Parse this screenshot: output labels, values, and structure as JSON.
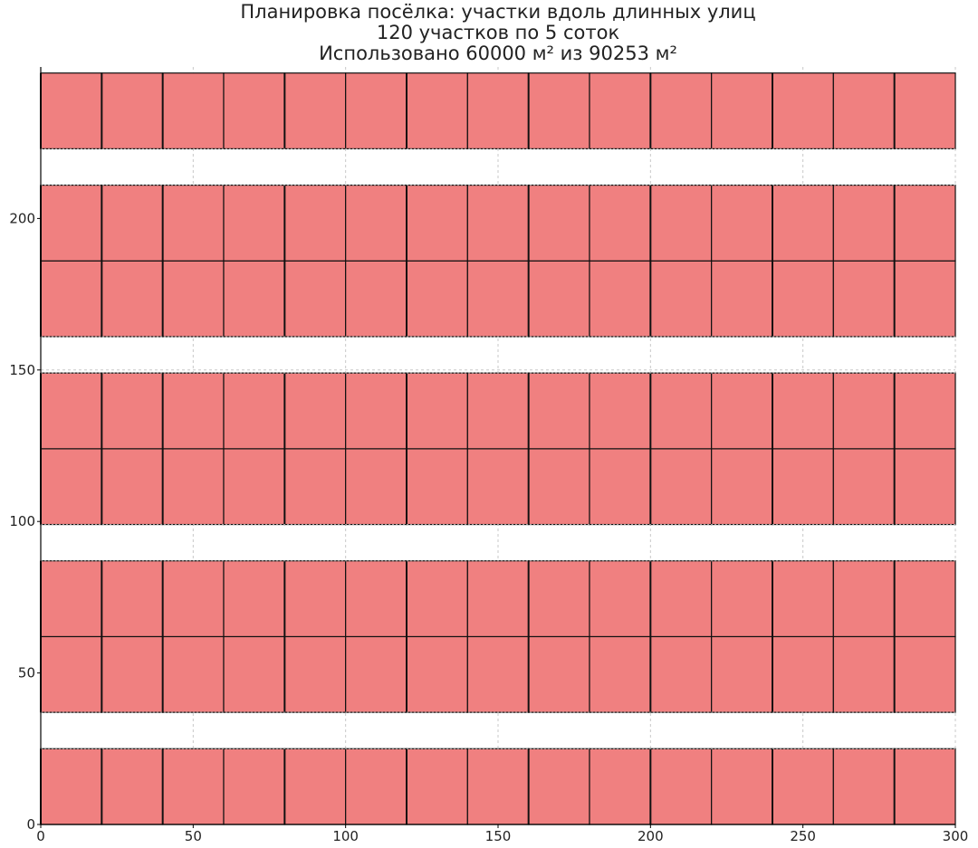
{
  "chart_data": {
    "type": "heatmap",
    "title": "Планировка посёлка: участки вдоль длинных улиц",
    "subtitle_lines": [
      "120 участков по 5 соток",
      "Использовано 60000 м² из 90253 м²"
    ],
    "xlabel": "",
    "ylabel": "",
    "xlim": [
      0,
      300
    ],
    "ylim": [
      0,
      250
    ],
    "x_ticks": [
      0,
      50,
      100,
      150,
      200,
      250,
      300
    ],
    "y_ticks": [
      0,
      50,
      100,
      150,
      200
    ],
    "grid": true,
    "plot_count": 120,
    "plot_area_m2": 500,
    "used_area_m2": 60000,
    "total_area_m2": 90253,
    "column_edges": [
      0,
      20,
      40,
      60,
      80,
      100,
      120,
      140,
      160,
      180,
      200,
      220,
      240,
      260,
      280,
      300
    ],
    "rows": [
      {
        "y0": 0,
        "y1": 25
      },
      {
        "y0": 37,
        "y1": 62
      },
      {
        "y0": 62,
        "y1": 87
      },
      {
        "y0": 99,
        "y1": 124
      },
      {
        "y0": 124,
        "y1": 149
      },
      {
        "y0": 161,
        "y1": 186
      },
      {
        "y0": 186,
        "y1": 211
      },
      {
        "y0": 223,
        "y1": 248
      }
    ],
    "street_lines": [
      25,
      37,
      87,
      99,
      149,
      161,
      211,
      223
    ],
    "colors": {
      "plot_fill": "#f08080",
      "plot_edge": "#111111",
      "grid": "#c8c8c8",
      "street_line": "#999999"
    }
  }
}
